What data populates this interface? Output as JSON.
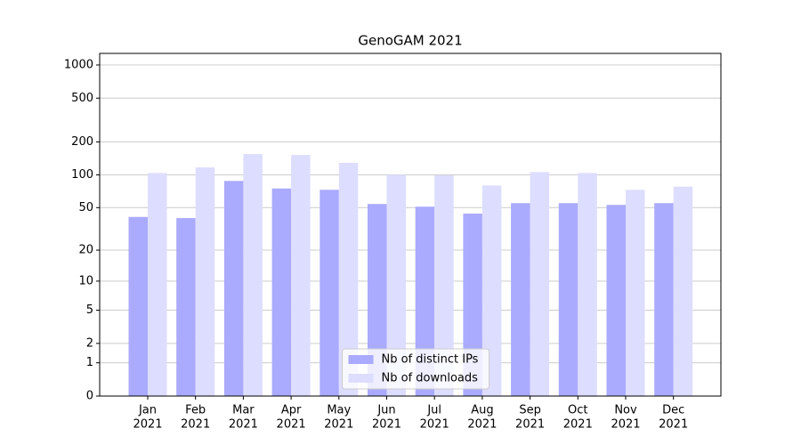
{
  "chart_data": {
    "type": "bar",
    "title": "GenoGAM 2021",
    "categories": [
      [
        "Jan",
        "2021"
      ],
      [
        "Feb",
        "2021"
      ],
      [
        "Mar",
        "2021"
      ],
      [
        "Apr",
        "2021"
      ],
      [
        "May",
        "2021"
      ],
      [
        "Jun",
        "2021"
      ],
      [
        "Jul",
        "2021"
      ],
      [
        "Aug",
        "2021"
      ],
      [
        "Sep",
        "2021"
      ],
      [
        "Oct",
        "2021"
      ],
      [
        "Nov",
        "2021"
      ],
      [
        "Dec",
        "2021"
      ]
    ],
    "series": [
      {
        "name": "Nb of distinct IPs",
        "color": "#aaaaff",
        "values": [
          41,
          40,
          88,
          75,
          73,
          54,
          51,
          44,
          55,
          55,
          53,
          55
        ]
      },
      {
        "name": "Nb of downloads",
        "color": "#ddddff",
        "values": [
          104,
          117,
          155,
          152,
          129,
          100,
          99,
          80,
          106,
          104,
          73,
          78
        ]
      }
    ],
    "yscale": "log1p",
    "ylim": [
      0,
      1273
    ],
    "yticks": [
      0,
      1,
      2,
      5,
      10,
      20,
      50,
      100,
      200,
      500,
      1000
    ],
    "grid": true,
    "legend": "lower center"
  }
}
